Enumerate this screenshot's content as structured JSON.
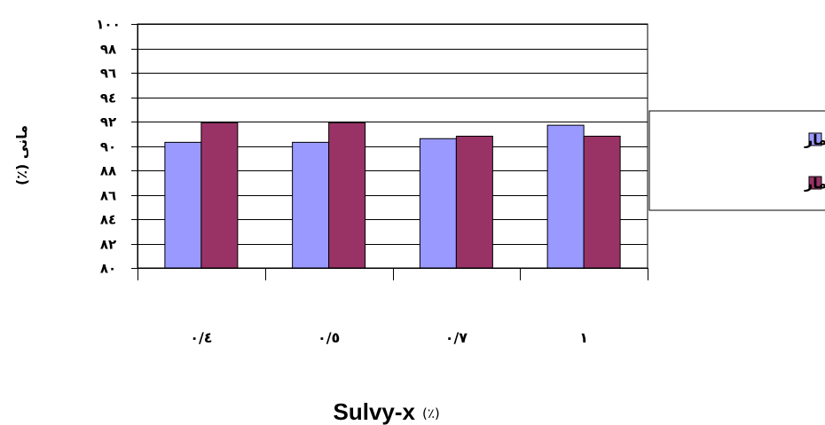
{
  "chart_data": {
    "type": "bar",
    "categories": [
      "٠/٤",
      "٠/٥",
      "٠/٧",
      "١"
    ],
    "series": [
      {
        "name": "بدون پیش تیمار",
        "color": "#9999ff",
        "values": [
          90.3,
          90.3,
          90.6,
          91.7
        ]
      },
      {
        "name": "با پیش تیمار",
        "color": "#993366",
        "values": [
          91.9,
          91.9,
          90.8,
          90.8
        ]
      }
    ],
    "ylim": [
      80,
      100
    ],
    "yticks": [
      {
        "value": 80,
        "label": "٨٠"
      },
      {
        "value": 82,
        "label": "٨٢"
      },
      {
        "value": 84,
        "label": "٨٤"
      },
      {
        "value": 86,
        "label": "٨٦"
      },
      {
        "value": 88,
        "label": "٨٨"
      },
      {
        "value": 90,
        "label": "٩٠"
      },
      {
        "value": 92,
        "label": "٩٢"
      },
      {
        "value": 94,
        "label": "٩٤"
      },
      {
        "value": 96,
        "label": "٩٦"
      },
      {
        "value": 98,
        "label": "٩٨"
      },
      {
        "value": 100,
        "label": "١٠٠"
      }
    ],
    "ylabel": "مانی (٪)",
    "xlabel": "Sulvy-x",
    "xlabel_unit": "(٪)",
    "grid": true,
    "legend_position": "right"
  }
}
